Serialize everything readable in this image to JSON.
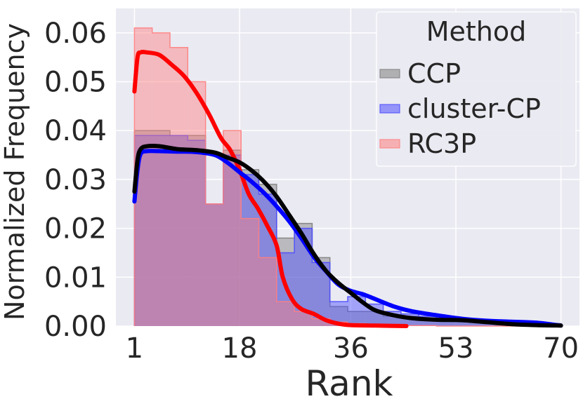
{
  "chart_data": {
    "type": "area",
    "title": "",
    "xlabel": "Rank",
    "ylabel": "Normalized Frequency",
    "xlim": [
      -2,
      73
    ],
    "ylim": [
      0,
      0.065
    ],
    "xticks": [
      1,
      18,
      36,
      53,
      70
    ],
    "xtick_labels": [
      "1",
      "18",
      "36",
      "53",
      "70"
    ],
    "yticks": [
      0,
      0.01,
      0.02,
      0.03,
      0.04,
      0.05,
      0.06
    ],
    "ytick_labels": [
      "0.00",
      "0.01",
      "0.02",
      "0.03",
      "0.04",
      "0.05",
      "0.06"
    ],
    "grid": true,
    "legend": {
      "title": "Method",
      "placement": "top-right"
    },
    "bin_edges": [
      1,
      3.875,
      6.75,
      9.625,
      12.5,
      15.375,
      18.25,
      21.125,
      24,
      26.875,
      29.75,
      32.625,
      35.5,
      38.375,
      41.25,
      44.125,
      47,
      49.875,
      52.75,
      55.625,
      58.5,
      61.375,
      64.25,
      67.125,
      70
    ],
    "series": [
      {
        "name": "CCP",
        "color": "#7f7f7f",
        "line_color": "#000000",
        "hist": [
          0.04,
          0.04,
          0.039,
          0.039,
          0.025,
          0.036,
          0.032,
          0.029,
          0.018,
          0.021,
          0.014,
          0.004,
          0.003,
          0.003,
          0.002,
          0.002,
          0.0015,
          0.0012,
          0.001,
          0.0008,
          0.0005,
          0.0003,
          0.0002,
          0.0001
        ],
        "kde": {
          "x": [
            1,
            1.5,
            2,
            3,
            5,
            8,
            11,
            14,
            16,
            18,
            20,
            22,
            24,
            26,
            28,
            30,
            32,
            34,
            36,
            38,
            40,
            43,
            46,
            50,
            54,
            58,
            62,
            66,
            70
          ],
          "y": [
            0.0275,
            0.034,
            0.0362,
            0.0368,
            0.0368,
            0.0362,
            0.036,
            0.0355,
            0.0345,
            0.0335,
            0.0318,
            0.0295,
            0.0265,
            0.0228,
            0.019,
            0.0148,
            0.0113,
            0.0088,
            0.0068,
            0.0048,
            0.0032,
            0.0022,
            0.0016,
            0.0013,
            0.0012,
            0.0008,
            0.0004,
            0.0002,
            0.0001
          ]
        }
      },
      {
        "name": "cluster-CP",
        "color": "#4c4cff",
        "line_color": "#0000ff",
        "hist": [
          0.039,
          0.039,
          0.039,
          0.038,
          0.025,
          0.035,
          0.031,
          0.027,
          0.015,
          0.02,
          0.013,
          0.005,
          0.006,
          0.0045,
          0.003,
          0.0025,
          0.002,
          0.0015,
          0.0015,
          0.0012,
          0.001,
          0.001,
          0.0008,
          0.0005
        ],
        "kde": {
          "x": [
            1,
            1.5,
            2,
            3,
            5,
            8,
            11,
            14,
            16,
            18,
            20,
            22,
            24,
            26,
            28,
            30,
            32,
            34,
            36,
            38,
            40,
            43,
            46,
            50,
            54,
            58,
            62,
            66,
            70
          ],
          "y": [
            0.0255,
            0.032,
            0.0352,
            0.0358,
            0.0358,
            0.0357,
            0.0356,
            0.035,
            0.0335,
            0.0315,
            0.0295,
            0.0272,
            0.0245,
            0.0215,
            0.018,
            0.0142,
            0.0112,
            0.0085,
            0.0072,
            0.0065,
            0.0055,
            0.004,
            0.003,
            0.0022,
            0.0015,
            0.0011,
            0.0009,
            0.0007,
            0.0001
          ]
        }
      },
      {
        "name": "RC3P",
        "color": "#ff7f7f",
        "line_color": "#ff0000",
        "hist": [
          0.061,
          0.06,
          0.057,
          0.05,
          0.025,
          0.04,
          0.022,
          0.014,
          0.005,
          0.003,
          0.0015,
          0.0008,
          0.0005,
          0.0003,
          0.0002,
          0.0001,
          0.0001,
          0,
          0,
          0,
          0,
          0,
          0,
          0
        ],
        "kde": {
          "x": [
            1,
            1.5,
            2,
            3,
            5,
            7,
            9,
            11,
            13,
            15,
            16.5,
            18,
            19.5,
            21,
            22.5,
            24,
            25,
            26.5,
            28,
            30,
            32,
            34,
            36,
            40,
            45
          ],
          "y": [
            0.048,
            0.055,
            0.056,
            0.056,
            0.0555,
            0.0535,
            0.0512,
            0.0478,
            0.0435,
            0.0385,
            0.036,
            0.032,
            0.027,
            0.024,
            0.0205,
            0.0165,
            0.01,
            0.0055,
            0.0035,
            0.0025,
            0.0012,
            0.0005,
            0.0002,
            0.0001,
            0
          ]
        }
      }
    ]
  }
}
